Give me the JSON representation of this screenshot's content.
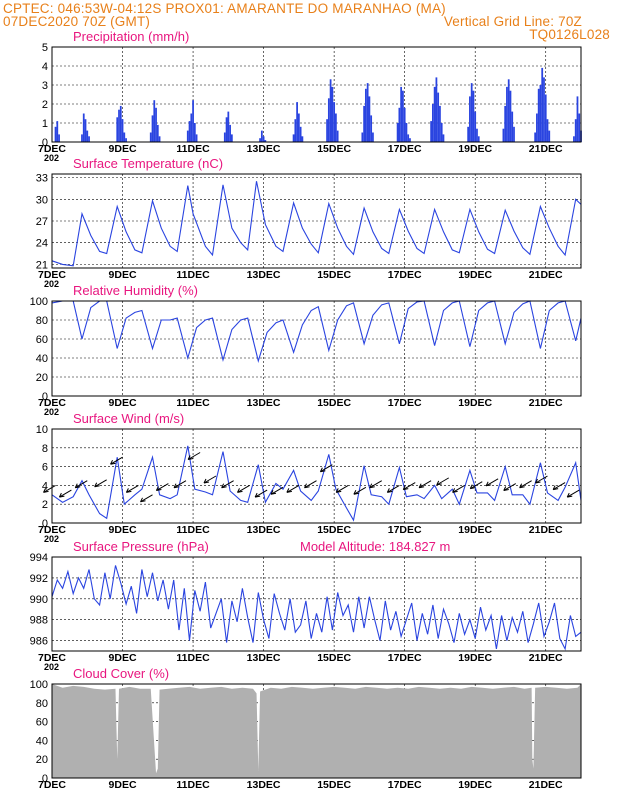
{
  "header": {
    "left_line1": "CPTEC:   046:53W-04:12S   PROX01: AMARANTE DO MARANHAO (MA)",
    "left_line2": "07DEC2020 70Z (GMT)",
    "right_line2": "Vertical Grid Line: 70Z",
    "right_line3": "TQ0126L028"
  },
  "colors": {
    "header": "#e8801a",
    "title": "#e8167f",
    "series": "#2a44e0",
    "cloud": "#b0b0b0",
    "grid": "#000000"
  },
  "x_tick_labels": [
    "7DEC",
    "9DEC",
    "11DEC",
    "13DEC",
    "15DEC",
    "17DEC",
    "19DEC",
    "21DEC"
  ],
  "x_corner_label": "202",
  "chart_data": [
    {
      "type": "bar",
      "title": "Precipitation (mm/h)",
      "ylim": [
        0,
        5
      ],
      "y_ticks": [
        0,
        1,
        2,
        3,
        4,
        5
      ],
      "x_range_days": [
        7,
        22
      ],
      "series": [
        {
          "x": [
            7.1,
            7.15,
            7.2,
            7.85,
            7.9,
            7.95,
            8.0,
            8.05,
            8.85,
            8.9,
            8.95,
            9.0,
            9.05,
            9.1,
            9.8,
            9.85,
            9.9,
            9.95,
            10.0,
            10.05,
            10.85,
            10.9,
            10.95,
            11.0,
            11.05,
            11.1,
            11.9,
            11.95,
            12.0,
            12.05,
            12.1,
            12.9,
            12.95,
            13.0,
            13.05,
            13.85,
            13.9,
            13.95,
            14.0,
            14.05,
            14.1,
            14.8,
            14.85,
            14.9,
            14.95,
            15.0,
            15.05,
            15.1,
            15.8,
            15.85,
            15.9,
            15.95,
            16.0,
            16.05,
            16.1,
            16.8,
            16.85,
            16.9,
            16.95,
            17.0,
            17.05,
            17.1,
            17.15,
            17.75,
            17.8,
            17.85,
            17.9,
            17.95,
            18.0,
            18.05,
            18.1,
            18.8,
            18.85,
            18.9,
            18.95,
            19.0,
            19.05,
            19.1,
            19.8,
            19.85,
            19.9,
            19.95,
            20.0,
            20.05,
            20.1,
            20.7,
            20.75,
            20.8,
            20.85,
            20.9,
            20.95,
            21.0,
            21.05,
            21.1,
            21.8,
            21.85,
            21.9,
            21.95,
            22.0
          ],
          "values": [
            0.8,
            1.1,
            0.4,
            0.4,
            1.5,
            1.2,
            0.6,
            0.3,
            1.3,
            1.7,
            1.9,
            1.2,
            0.5,
            0.2,
            0.5,
            1.4,
            2.2,
            1.8,
            0.9,
            0.3,
            0.6,
            1.1,
            1.5,
            2.2,
            1.0,
            0.4,
            0.5,
            1.3,
            1.6,
            0.9,
            0.4,
            0.2,
            0.6,
            0.3,
            0.1,
            0.4,
            1.2,
            2.1,
            1.5,
            0.8,
            0.3,
            1.2,
            2.3,
            3.3,
            2.9,
            2.1,
            1.5,
            0.6,
            0.5,
            1.9,
            2.8,
            3.1,
            2.4,
            1.4,
            0.5,
            1.0,
            1.8,
            2.9,
            2.7,
            1.8,
            1.0,
            0.4,
            0.2,
            1.1,
            2.0,
            2.9,
            3.4,
            2.6,
            1.9,
            1.0,
            0.4,
            0.8,
            2.4,
            3.1,
            2.7,
            1.6,
            0.7,
            0.3,
            0.7,
            1.9,
            2.9,
            3.3,
            2.7,
            1.6,
            0.8,
            0.5,
            1.5,
            2.8,
            3.0,
            3.9,
            3.4,
            2.5,
            1.2,
            0.6,
            0.3,
            1.2,
            2.4,
            1.5,
            0.6
          ]
        }
      ]
    },
    {
      "type": "line",
      "title": "Surface Temperature (nC)",
      "ylim": [
        20.5,
        33.5
      ],
      "y_ticks": [
        21,
        24,
        27,
        30,
        33
      ],
      "x_range_days": [
        7,
        22
      ],
      "series": [
        {
          "x": [
            7.0,
            7.3,
            7.6,
            7.85,
            8.1,
            8.35,
            8.55,
            8.85,
            9.1,
            9.35,
            9.55,
            9.85,
            10.1,
            10.35,
            10.55,
            10.85,
            11.0,
            11.35,
            11.55,
            11.85,
            12.1,
            12.35,
            12.55,
            12.8,
            13.05,
            13.35,
            13.55,
            13.85,
            14.1,
            14.35,
            14.55,
            14.85,
            15.1,
            15.35,
            15.55,
            15.85,
            16.1,
            16.35,
            16.55,
            16.85,
            17.1,
            17.35,
            17.55,
            17.85,
            18.1,
            18.35,
            18.55,
            18.85,
            19.1,
            19.35,
            19.55,
            19.85,
            20.1,
            20.35,
            20.55,
            20.85,
            21.1,
            21.35,
            21.55,
            21.85,
            22.0
          ],
          "values": [
            21.5,
            21.0,
            20.8,
            28.0,
            25.0,
            22.8,
            22.5,
            29.0,
            25.5,
            23.0,
            22.6,
            29.8,
            26.0,
            23.5,
            22.8,
            31.9,
            28.0,
            23.5,
            22.3,
            32.0,
            26.0,
            24.0,
            23.0,
            32.5,
            26.5,
            23.5,
            22.8,
            29.5,
            26.0,
            23.8,
            22.6,
            29.4,
            26.0,
            23.5,
            22.4,
            28.8,
            25.5,
            23.2,
            22.5,
            28.6,
            25.6,
            23.2,
            22.5,
            28.6,
            25.5,
            23.0,
            22.6,
            28.6,
            25.5,
            23.1,
            22.5,
            28.5,
            25.6,
            23.3,
            22.4,
            29.0,
            26.0,
            23.5,
            22.3,
            30.0,
            29.3
          ]
        }
      ]
    },
    {
      "type": "line",
      "title": "Relative Humidity (%)",
      "ylim": [
        0,
        100
      ],
      "y_ticks": [
        0,
        20,
        40,
        60,
        80,
        100
      ],
      "x_range_days": [
        7,
        22
      ],
      "series": [
        {
          "x": [
            7.0,
            7.3,
            7.6,
            7.85,
            8.1,
            8.35,
            8.55,
            8.85,
            9.1,
            9.35,
            9.55,
            9.85,
            10.1,
            10.35,
            10.55,
            10.85,
            11.1,
            11.35,
            11.55,
            11.85,
            12.1,
            12.35,
            12.55,
            12.85,
            13.1,
            13.35,
            13.55,
            13.85,
            14.1,
            14.35,
            14.55,
            14.85,
            15.1,
            15.35,
            15.55,
            15.85,
            16.1,
            16.35,
            16.55,
            16.85,
            17.1,
            17.35,
            17.55,
            17.85,
            18.1,
            18.35,
            18.55,
            18.85,
            19.1,
            19.35,
            19.55,
            19.85,
            20.1,
            20.35,
            20.55,
            20.85,
            21.1,
            21.35,
            21.55,
            21.85,
            22.0
          ],
          "values": [
            98,
            100,
            100,
            60,
            93,
            100,
            100,
            50,
            82,
            88,
            90,
            50,
            80,
            80,
            82,
            40,
            72,
            80,
            82,
            38,
            70,
            80,
            82,
            37,
            67,
            77,
            80,
            46,
            75,
            90,
            94,
            48,
            80,
            95,
            98,
            55,
            85,
            96,
            98,
            55,
            92,
            99,
            100,
            53,
            90,
            98,
            100,
            52,
            90,
            98,
            100,
            55,
            88,
            97,
            100,
            50,
            90,
            98,
            100,
            58,
            82
          ]
        }
      ]
    },
    {
      "type": "line",
      "title": "Surface Wind (m/s)",
      "ylim": [
        0,
        10
      ],
      "y_ticks": [
        0,
        2,
        4,
        6,
        8,
        10
      ],
      "x_range_days": [
        7,
        22
      ],
      "series": [
        {
          "x": [
            7.0,
            7.3,
            7.6,
            7.85,
            8.05,
            8.35,
            8.55,
            8.85,
            9.05,
            9.35,
            9.55,
            9.85,
            10.05,
            10.35,
            10.55,
            10.85,
            11.05,
            11.35,
            11.55,
            11.85,
            12.05,
            12.35,
            12.55,
            12.85,
            13.05,
            13.35,
            13.55,
            13.85,
            14.05,
            14.35,
            14.55,
            14.85,
            15.05,
            15.35,
            15.55,
            15.85,
            16.05,
            16.35,
            16.55,
            16.85,
            17.05,
            17.35,
            17.55,
            17.85,
            18.05,
            18.35,
            18.55,
            18.85,
            19.05,
            19.35,
            19.55,
            19.85,
            20.05,
            20.35,
            20.55,
            20.85,
            21.05,
            21.35,
            21.55,
            21.85,
            22.0
          ],
          "values": [
            3.0,
            2.2,
            2.8,
            4.5,
            3.0,
            1.0,
            0.5,
            7.0,
            2.0,
            3.0,
            3.6,
            7.0,
            3.0,
            2.6,
            3.0,
            8.2,
            3.6,
            3.3,
            3.0,
            7.6,
            3.4,
            2.4,
            2.2,
            6.2,
            2.2,
            4.2,
            3.6,
            5.6,
            3.4,
            2.4,
            3.4,
            7.3,
            3.6,
            1.6,
            0.3,
            6.1,
            3.0,
            2.8,
            2.0,
            5.9,
            2.8,
            3.0,
            2.6,
            4.0,
            2.6,
            3.6,
            2.0,
            5.6,
            3.2,
            3.2,
            2.4,
            6.0,
            3.0,
            3.0,
            2.0,
            6.4,
            3.2,
            2.4,
            3.8,
            6.4,
            2.4
          ]
        }
      ],
      "wind_vectors": {
        "x": [
          7.1,
          7.55,
          8.0,
          8.55,
          9.0,
          9.45,
          9.85,
          10.3,
          10.8,
          11.2,
          11.65,
          12.15,
          12.6,
          13.1,
          13.55,
          14.0,
          14.5,
          14.95,
          15.4,
          15.9,
          16.35,
          16.85,
          17.3,
          17.75,
          18.25,
          18.7,
          19.2,
          19.65,
          20.15,
          20.6,
          21.05,
          21.55,
          21.95
        ],
        "speed": [
          4,
          3.5,
          4.5,
          4.6,
          7.0,
          4.0,
          3.0,
          4.2,
          4.5,
          7.5,
          5.0,
          4.5,
          4.0,
          3.5,
          3.8,
          4.0,
          4.5,
          6.2,
          4.0,
          3.8,
          4.5,
          4.0,
          4.3,
          4.5,
          4.8,
          4.0,
          4.4,
          4.7,
          4.2,
          4.5,
          5.0,
          4.3,
          3.5
        ]
      }
    },
    {
      "type": "line",
      "title": "Surface Pressure (hPa)",
      "annotation": "Model Altitude: 184.827 m",
      "ylim": [
        985,
        994
      ],
      "y_ticks": [
        986,
        988,
        990,
        992,
        994
      ],
      "x_range_days": [
        7,
        22
      ],
      "series": [
        {
          "x": [
            7.0,
            7.15,
            7.3,
            7.45,
            7.6,
            7.75,
            7.9,
            8.05,
            8.2,
            8.35,
            8.5,
            8.65,
            8.8,
            8.95,
            9.1,
            9.25,
            9.4,
            9.55,
            9.7,
            9.85,
            10.0,
            10.15,
            10.3,
            10.45,
            10.6,
            10.75,
            10.9,
            11.05,
            11.2,
            11.35,
            11.5,
            11.65,
            11.8,
            11.95,
            12.1,
            12.25,
            12.4,
            12.55,
            12.7,
            12.85,
            13.0,
            13.15,
            13.3,
            13.45,
            13.6,
            13.75,
            13.9,
            14.05,
            14.2,
            14.35,
            14.5,
            14.65,
            14.8,
            14.95,
            15.1,
            15.25,
            15.4,
            15.55,
            15.7,
            15.85,
            16.0,
            16.15,
            16.3,
            16.45,
            16.6,
            16.75,
            16.9,
            17.05,
            17.2,
            17.35,
            17.5,
            17.65,
            17.8,
            17.95,
            18.1,
            18.25,
            18.4,
            18.55,
            18.7,
            18.85,
            19.0,
            19.15,
            19.3,
            19.45,
            19.6,
            19.75,
            19.9,
            20.05,
            20.2,
            20.35,
            20.5,
            20.65,
            20.8,
            20.95,
            21.1,
            21.25,
            21.4,
            21.55,
            21.7,
            21.85,
            22.0
          ],
          "values": [
            990.2,
            991.8,
            991.0,
            992.6,
            990.5,
            992.0,
            991.0,
            992.8,
            990.0,
            989.4,
            992.5,
            990.0,
            993.2,
            991.5,
            989.5,
            991.2,
            988.6,
            992.8,
            990.2,
            992.5,
            989.8,
            991.8,
            989.0,
            991.8,
            987.0,
            991.0,
            986.0,
            990.8,
            988.8,
            991.6,
            987.2,
            988.6,
            990.0,
            985.8,
            989.8,
            987.8,
            991.0,
            988.2,
            985.8,
            990.6,
            988.0,
            986.2,
            990.5,
            988.6,
            987.0,
            990.0,
            986.8,
            987.5,
            989.8,
            986.2,
            988.6,
            986.8,
            990.2,
            987.0,
            990.6,
            988.4,
            989.4,
            986.8,
            990.2,
            987.2,
            990.2,
            988.0,
            986.0,
            989.8,
            987.0,
            988.8,
            986.4,
            988.0,
            989.6,
            986.0,
            988.6,
            986.6,
            989.4,
            986.2,
            989.0,
            987.6,
            985.8,
            988.6,
            986.6,
            988.0,
            986.2,
            989.2,
            987.0,
            988.4,
            985.2,
            988.4,
            986.0,
            988.2,
            986.8,
            988.8,
            985.8,
            987.6,
            989.6,
            986.4,
            987.8,
            989.6,
            986.2,
            985.2,
            988.4,
            986.4,
            986.8
          ]
        }
      ]
    },
    {
      "type": "area",
      "title": "Cloud Cover (%)",
      "ylim": [
        0,
        100
      ],
      "y_ticks": [
        0,
        20,
        40,
        60,
        80,
        100
      ],
      "x_range_days": [
        7,
        22
      ],
      "series": [
        {
          "x": [
            7.0,
            7.3,
            7.6,
            7.9,
            8.2,
            8.5,
            8.8,
            8.85,
            8.9,
            9.2,
            9.5,
            9.8,
            9.95,
            10.0,
            10.05,
            10.3,
            10.6,
            10.9,
            11.2,
            11.5,
            11.8,
            12.1,
            12.4,
            12.7,
            12.8,
            12.85,
            12.9,
            13.2,
            13.5,
            13.8,
            14.1,
            14.4,
            14.7,
            15.0,
            15.3,
            15.6,
            15.9,
            16.2,
            16.5,
            16.8,
            17.1,
            17.4,
            17.7,
            18.0,
            18.3,
            18.6,
            18.9,
            19.2,
            19.5,
            19.8,
            20.1,
            20.4,
            20.6,
            20.62,
            20.65,
            20.7,
            21.0,
            21.3,
            21.6,
            21.9,
            22.0
          ],
          "values": [
            100,
            96,
            98,
            97,
            95,
            94,
            95,
            20,
            95,
            97,
            95,
            95,
            5,
            10,
            94,
            95,
            96,
            97,
            95,
            96,
            97,
            95,
            96,
            95,
            90,
            8,
            92,
            96,
            95,
            97,
            96,
            95,
            96,
            97,
            96,
            95,
            97,
            96,
            95,
            96,
            95,
            97,
            96,
            95,
            96,
            95,
            97,
            96,
            95,
            96,
            97,
            95,
            96,
            20,
            10,
            96,
            97,
            96,
            95,
            96,
            100
          ]
        }
      ]
    }
  ]
}
